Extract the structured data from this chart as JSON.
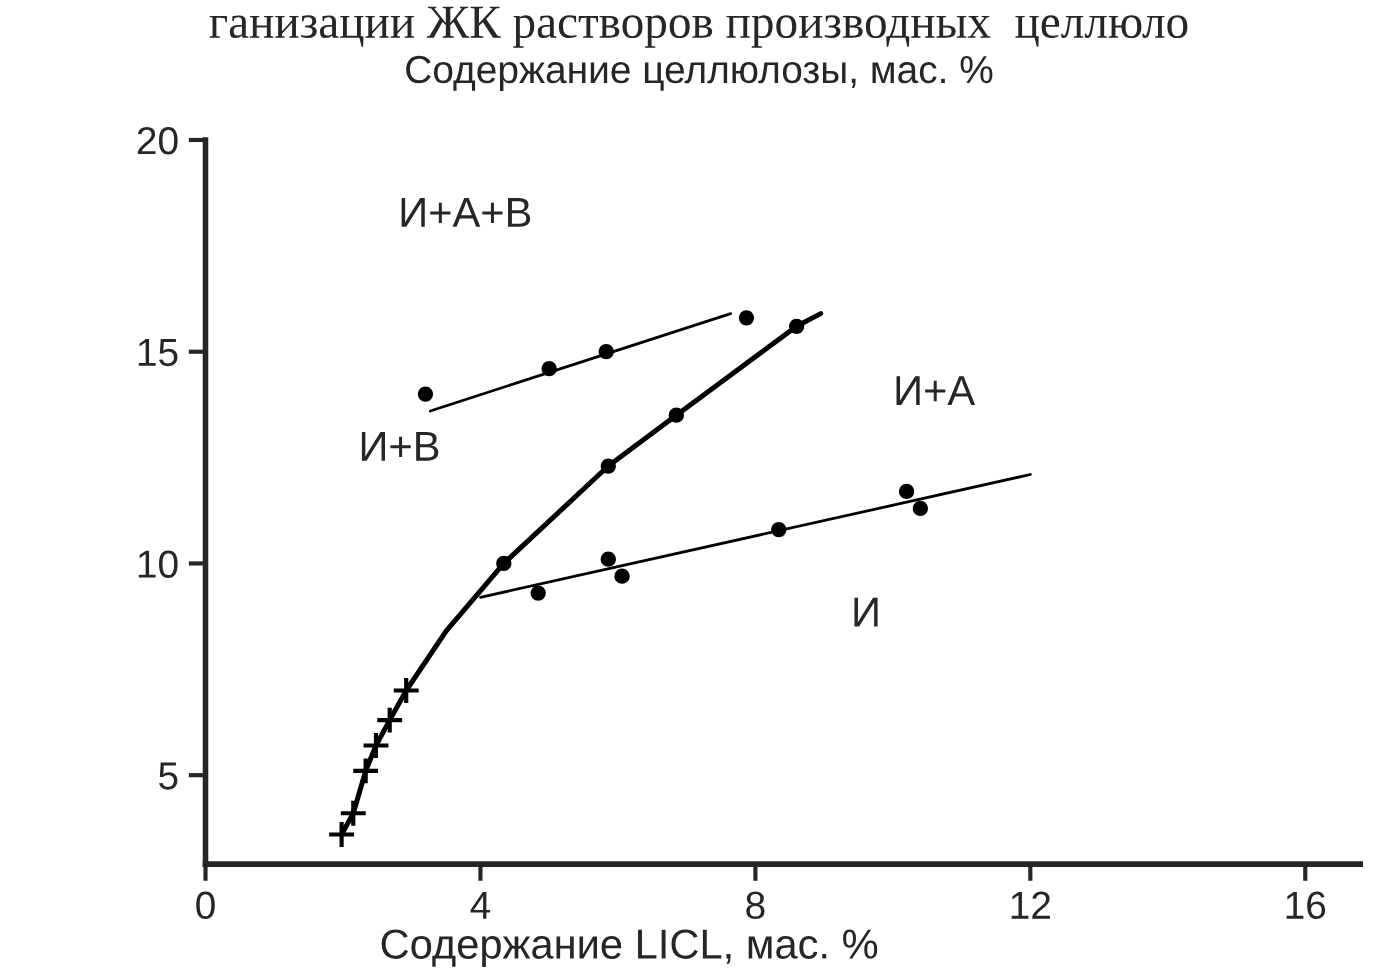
{
  "chart_data": {
    "type": "line",
    "title": "ганизации ЖК растворов производных  целлюло",
    "ylabel": "Содержание целлюлозы, мас. %",
    "xlabel": "Содержание LICL, мас. %",
    "xlim": [
      0,
      16.8
    ],
    "ylim": [
      2.9,
      20
    ],
    "xticks": [
      0,
      4,
      8,
      12,
      16
    ],
    "yticks": [
      5,
      10,
      15,
      20
    ],
    "grid": false,
    "legend": false,
    "series": [
      {
        "color": "#000000",
        "marker": "none",
        "x": [
          1.98,
          2.15,
          2.33,
          2.48,
          2.68,
          2.92,
          3.5,
          4.34,
          5.86,
          6.85,
          8.6,
          8.95
        ],
        "values": [
          3.6,
          4.1,
          5.1,
          5.7,
          6.3,
          7.0,
          8.4,
          10.0,
          12.3,
          13.5,
          15.6,
          15.9
        ]
      },
      {
        "color": "#000000",
        "marker": "none",
        "x": [
          3.27,
          7.64
        ],
        "values": [
          13.6,
          15.9
        ]
      },
      {
        "color": "#000000",
        "marker": "none",
        "x": [
          4.0,
          12.0
        ],
        "values": [
          9.2,
          12.1
        ]
      },
      {
        "type": "scatter",
        "color": "#000000",
        "marker": "cross",
        "x": [
          1.98,
          2.15,
          2.33,
          2.48,
          2.68,
          2.92
        ],
        "values": [
          3.6,
          4.1,
          5.1,
          5.7,
          6.3,
          7.0
        ]
      },
      {
        "type": "scatter",
        "color": "#000000",
        "marker": "circle",
        "x": [
          4.34,
          5.86,
          6.85,
          8.6,
          3.2,
          5.0,
          5.83,
          7.87,
          4.84,
          5.86,
          6.06,
          8.34,
          10.2,
          10.4
        ],
        "values": [
          10.0,
          12.3,
          13.5,
          15.6,
          14.0,
          14.6,
          15.0,
          15.8,
          9.3,
          10.1,
          9.7,
          10.8,
          11.7,
          11.3
        ]
      }
    ],
    "annotations": [
      "И+А+В",
      "И+В",
      "И+А",
      "И"
    ]
  }
}
